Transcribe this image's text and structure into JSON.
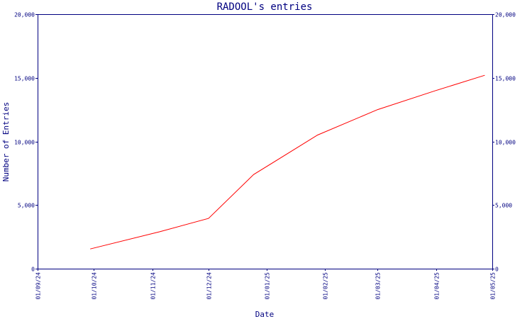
{
  "chart_data": {
    "type": "line",
    "title": "RADOOL's entries",
    "xlabel": "Date",
    "ylabel": "Number of Entries",
    "x_ticks": [
      "01/09/24",
      "01/10/24",
      "01/11/24",
      "01/12/24",
      "01/01/25",
      "01/02/25",
      "01/03/25",
      "01/04/25",
      "01/05/25"
    ],
    "y_ticks": [
      "0",
      "5,000",
      "10,000",
      "15,000",
      "20,000"
    ],
    "y_tick_values": [
      0,
      5000,
      10000,
      15000,
      20000
    ],
    "ylim": [
      0,
      20000
    ],
    "xlim": [
      "2024-09-01",
      "2025-05-01"
    ],
    "grid": false,
    "series": [
      {
        "color": "#ff0000",
        "x": [
          "2024-09-29",
          "2024-11-05",
          "2024-12-01",
          "2024-12-25",
          "2025-01-28",
          "2025-03-01",
          "2025-04-01",
          "2025-04-27"
        ],
        "values": [
          1550,
          2900,
          3950,
          7400,
          10500,
          12500,
          14000,
          15200
        ]
      }
    ]
  }
}
